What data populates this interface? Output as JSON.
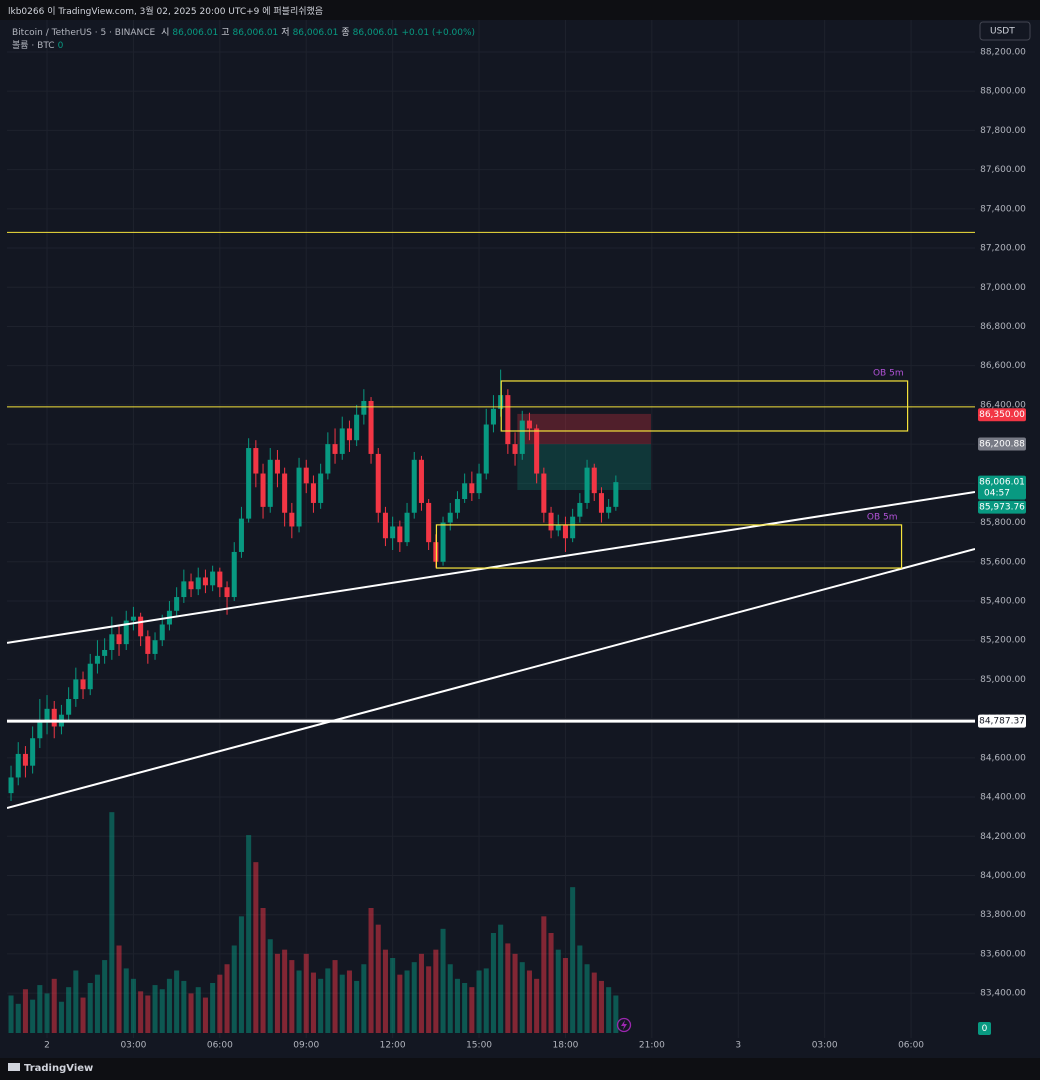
{
  "header": {
    "published": "lkb0266 이 TradingView.com, 3월 02, 2025 20:00 UTC+9 에 퍼블리쉬했음",
    "brand": "TradingView"
  },
  "chart_data": {
    "type": "candlestick",
    "title": "Bitcoin / TetherUS · 5 · BINANCE",
    "ohlc_legend": [
      {
        "name": "시",
        "value": {
          "value": 86006.01,
          "label": "86,006.01"
        }
      },
      {
        "name": "고",
        "value": {
          "value": 86006.01,
          "label": "86,006.01"
        }
      },
      {
        "name": "저",
        "value": {
          "value": 86006.01,
          "label": "86,006.01"
        }
      },
      {
        "name": "종",
        "value": {
          "value": 86006.01,
          "label": "86,006.01"
        }
      }
    ],
    "change": "+0.01 (+0.00%)",
    "volume_legend": "볼륨 · BTC",
    "volume_last": 0,
    "currency": "USDT",
    "countdown": "04:57",
    "up_color": "#089981",
    "down_color": "#f23645",
    "x": [
      -1.25,
      -1,
      -0.75,
      -0.5,
      -0.25,
      0,
      0.25,
      0.5,
      0.75,
      1,
      1.25,
      1.5,
      1.75,
      2,
      2.25,
      2.5,
      2.75,
      3,
      3.25,
      3.5,
      3.75,
      4,
      4.25,
      4.5,
      4.75,
      5,
      5.25,
      5.5,
      5.75,
      6,
      6.25,
      6.5,
      6.75,
      7,
      7.25,
      7.5,
      7.75,
      8,
      8.25,
      8.5,
      8.75,
      9,
      9.25,
      9.5,
      9.75,
      10,
      10.25,
      10.5,
      10.75,
      11,
      11.25,
      11.5,
      11.75,
      12,
      12.25,
      12.5,
      12.75,
      13,
      13.25,
      13.5,
      13.75,
      14,
      14.25,
      14.5,
      14.75,
      15,
      15.25,
      15.5,
      15.75,
      16,
      16.25,
      16.5,
      16.75,
      17,
      17.25,
      17.5,
      17.75,
      18,
      18.25,
      18.5,
      18.75,
      19,
      19.25,
      19.5,
      19.75
    ],
    "open": [
      84420,
      84500,
      84620,
      84560,
      84700,
      84780,
      84850,
      84760,
      84820,
      84900,
      85000,
      84950,
      85080,
      85120,
      85150,
      85230,
      85180,
      85300,
      85320,
      85220,
      85130,
      85200,
      85280,
      85350,
      85420,
      85500,
      85460,
      85520,
      85480,
      85550,
      85470,
      85420,
      85650,
      85820,
      86180,
      86050,
      85880,
      86120,
      86050,
      85850,
      85780,
      86080,
      86000,
      85900,
      86050,
      86200,
      86150,
      86280,
      86220,
      86350,
      86420,
      86150,
      85850,
      85720,
      85780,
      85700,
      85850,
      86120,
      85900,
      85700,
      85600,
      85800,
      85850,
      85920,
      86000,
      85950,
      86050,
      86300,
      86380,
      86450,
      86200,
      86150,
      86320,
      86280,
      86050,
      85850,
      85760,
      85790,
      85720,
      85830,
      85900,
      86080,
      85950,
      85850,
      85880
    ],
    "high": [
      84560,
      84680,
      84660,
      84760,
      84900,
      84920,
      84890,
      84870,
      84960,
      85060,
      85040,
      85130,
      85200,
      85210,
      85320,
      85280,
      85350,
      85370,
      85340,
      85250,
      85240,
      85330,
      85400,
      85470,
      85560,
      85540,
      85570,
      85560,
      85580,
      85570,
      85500,
      85700,
      85880,
      86230,
      86220,
      86100,
      86180,
      86170,
      86080,
      85900,
      86130,
      86120,
      86040,
      86100,
      86260,
      86280,
      86340,
      86320,
      86400,
      86480,
      86440,
      86180,
      85880,
      85830,
      85810,
      85900,
      86160,
      86140,
      85920,
      85740,
      85830,
      85900,
      85960,
      86050,
      86060,
      86100,
      86380,
      86450,
      86580,
      86480,
      86260,
      86370,
      86360,
      86300,
      86080,
      85880,
      85840,
      85830,
      85870,
      85950,
      86120,
      86100,
      85980,
      85920,
      86040
    ],
    "low": [
      84380,
      84460,
      84500,
      84520,
      84650,
      84720,
      84700,
      84720,
      84790,
      84860,
      84900,
      84920,
      85030,
      85080,
      85100,
      85120,
      85150,
      85250,
      85170,
      85080,
      85100,
      85170,
      85250,
      85320,
      85390,
      85420,
      85430,
      85440,
      85450,
      85420,
      85330,
      85400,
      85620,
      85800,
      85980,
      85820,
      85850,
      85980,
      85780,
      85720,
      85750,
      85950,
      85850,
      85870,
      86020,
      86100,
      86120,
      86160,
      86190,
      86300,
      86100,
      85800,
      85680,
      85660,
      85650,
      85680,
      85820,
      85860,
      85660,
      85570,
      85580,
      85760,
      85820,
      85900,
      85910,
      85920,
      86020,
      86260,
      86340,
      86150,
      86090,
      86120,
      86220,
      86000,
      85800,
      85720,
      85730,
      85650,
      85700,
      85800,
      85870,
      85910,
      85800,
      85820,
      85860
    ],
    "close": [
      84500,
      84620,
      84560,
      84700,
      84780,
      84850,
      84760,
      84820,
      84900,
      85000,
      84950,
      85080,
      85120,
      85150,
      85230,
      85180,
      85300,
      85320,
      85220,
      85130,
      85200,
      85280,
      85350,
      85420,
      85500,
      85460,
      85520,
      85480,
      85550,
      85470,
      85420,
      85650,
      85820,
      86180,
      86050,
      85880,
      86120,
      86050,
      85850,
      85780,
      86080,
      86000,
      85900,
      86050,
      86200,
      86150,
      86280,
      86220,
      86350,
      86420,
      86150,
      85850,
      85720,
      85780,
      85700,
      85850,
      86120,
      85900,
      85700,
      85600,
      85800,
      85850,
      85920,
      86000,
      85950,
      86050,
      86300,
      86380,
      86450,
      86200,
      86150,
      86320,
      86280,
      86050,
      85850,
      85760,
      85790,
      85720,
      85830,
      85900,
      86080,
      85950,
      85850,
      85880,
      86006.01
    ],
    "volume": [
      180,
      140,
      210,
      160,
      230,
      190,
      260,
      150,
      220,
      300,
      170,
      240,
      280,
      350,
      1060,
      420,
      310,
      260,
      200,
      180,
      230,
      210,
      260,
      300,
      250,
      190,
      220,
      170,
      240,
      280,
      330,
      420,
      560,
      950,
      820,
      600,
      450,
      380,
      400,
      350,
      300,
      380,
      290,
      260,
      310,
      350,
      280,
      300,
      250,
      330,
      600,
      520,
      400,
      360,
      280,
      300,
      340,
      380,
      320,
      400,
      500,
      330,
      260,
      240,
      220,
      300,
      310,
      480,
      520,
      430,
      380,
      340,
      300,
      260,
      560,
      480,
      400,
      360,
      700,
      420,
      330,
      290,
      250,
      220,
      180
    ],
    "volume_ylim": [
      0,
      1200
    ],
    "xlim": [
      -1.39,
      32.22
    ],
    "xticks": [
      {
        "value": 0,
        "label": "2"
      },
      {
        "value": 3,
        "label": "03:00"
      },
      {
        "value": 6,
        "label": "06:00"
      },
      {
        "value": 9,
        "label": "09:00"
      },
      {
        "value": 12,
        "label": "12:00"
      },
      {
        "value": 15,
        "label": "15:00"
      },
      {
        "value": 18,
        "label": "18:00"
      },
      {
        "value": 21,
        "label": "21:00"
      },
      {
        "value": 24,
        "label": "3"
      },
      {
        "value": 27,
        "label": "03:00"
      },
      {
        "value": 30,
        "label": "06:00"
      }
    ],
    "ylim": [
      83110,
      88363
    ],
    "yticks": [
      {
        "value": 83400,
        "label": "83,400.00"
      },
      {
        "value": 83600,
        "label": "83,600.00"
      },
      {
        "value": 83800,
        "label": "83,800.00"
      },
      {
        "value": 84000,
        "label": "84,000.00"
      },
      {
        "value": 84200,
        "label": "84,200.00"
      },
      {
        "value": 84400,
        "label": "84,400.00"
      },
      {
        "value": 84600,
        "label": "84,600.00"
      },
      {
        "value": 84800,
        "label": "84,800.00"
      },
      {
        "value": 85000,
        "label": "85,000.00"
      },
      {
        "value": 85200,
        "label": "85,200.00"
      },
      {
        "value": 85400,
        "label": "85,400.00"
      },
      {
        "value": 85600,
        "label": "85,600.00"
      },
      {
        "value": 85800,
        "label": "85,800.00"
      },
      {
        "value": 86000,
        "label": "86,000.00"
      },
      {
        "value": 86200,
        "label": "86,200.00"
      },
      {
        "value": 86400,
        "label": "86,400.00"
      },
      {
        "value": 86600,
        "label": "86,600.00"
      },
      {
        "value": 86800,
        "label": "86,800.00"
      },
      {
        "value": 87000,
        "label": "87,000.00"
      },
      {
        "value": 87200,
        "label": "87,200.00"
      },
      {
        "value": 87400,
        "label": "87,400.00"
      },
      {
        "value": 87600,
        "label": "87,600.00"
      },
      {
        "value": 87800,
        "label": "87,800.00"
      },
      {
        "value": 88000,
        "label": "88,000.00"
      },
      {
        "value": 88200,
        "label": "88,200.00"
      }
    ],
    "grid": true,
    "hlines": [
      {
        "value": 87280,
        "color": "#f5e33b",
        "width": 1
      },
      {
        "value": 86390,
        "color": "#f5e33b",
        "width": 1
      },
      {
        "value": 84787.37,
        "color": "#ffffff",
        "width": 3
      }
    ],
    "trendlines": [
      {
        "x": [
          -1.39,
          32.22
        ],
        "y": [
          85186,
          85956
        ],
        "color": "#ffffff"
      },
      {
        "x": [
          -1.39,
          32.22
        ],
        "y": [
          84344,
          85665
        ],
        "color": "#ffffff"
      }
    ],
    "boxes": [
      {
        "x": [
          15.77,
          29.88
        ],
        "y": [
          86267,
          86522
        ],
        "label": "OB 5m",
        "color": "#f5e33b"
      },
      {
        "x": [
          13.52,
          29.67
        ],
        "y": [
          85568,
          85788
        ],
        "label": "OB 5m",
        "color": "#f5e33b"
      }
    ],
    "position": {
      "x": [
        16.33,
        20.97
      ],
      "entry": 86200,
      "upper": 86354,
      "lower": 85966
    },
    "price_labels": [
      {
        "value": 86350,
        "label": "86,350.00",
        "color": "#f23645"
      },
      {
        "value": 86200.88,
        "label": "86,200.88",
        "color": "#787b86"
      },
      {
        "value": 86006.01,
        "label": "86,006.01",
        "color": "#089981"
      },
      {
        "value": 85973.76,
        "label": "85,973.76",
        "color": "#089981"
      },
      {
        "value": 84787.37,
        "label": "84,787.37",
        "color": "#ffffff"
      }
    ]
  }
}
